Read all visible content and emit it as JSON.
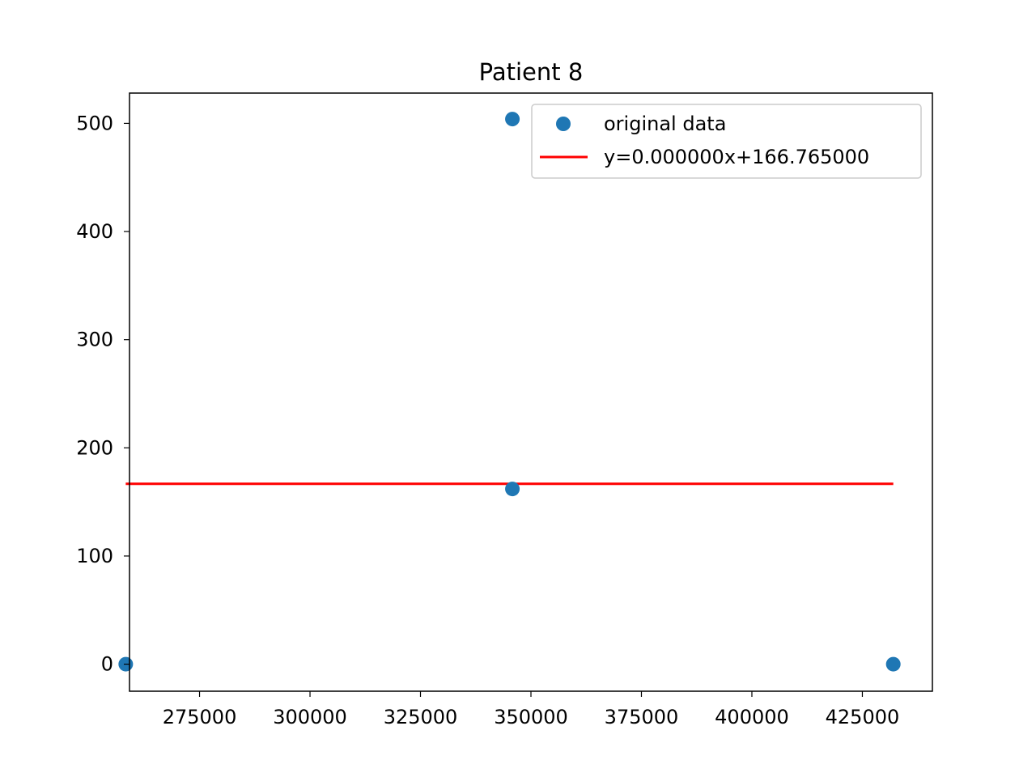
{
  "chart_data": {
    "type": "scatter",
    "title": "Patient 8",
    "xlabel": "",
    "ylabel": "",
    "xlim": [
      259150,
      440850
    ],
    "ylim": [
      -25,
      528
    ],
    "x_ticks": [
      275000,
      300000,
      325000,
      350000,
      375000,
      400000,
      425000
    ],
    "y_ticks": [
      0,
      100,
      200,
      300,
      400,
      500
    ],
    "grid": false,
    "legend_position": "top-right",
    "series": [
      {
        "name": "original data",
        "kind": "scatter",
        "color": "#1f77b4",
        "points": [
          {
            "x": 258300,
            "y": 0
          },
          {
            "x": 345800,
            "y": 162
          },
          {
            "x": 345800,
            "y": 504
          },
          {
            "x": 432000,
            "y": 0
          }
        ]
      },
      {
        "name": "y=0.000000x+166.765000",
        "kind": "line",
        "color": "#ff0000",
        "slope": 0.0,
        "intercept": 166.765,
        "x_range": [
          258300,
          432000
        ]
      }
    ]
  }
}
